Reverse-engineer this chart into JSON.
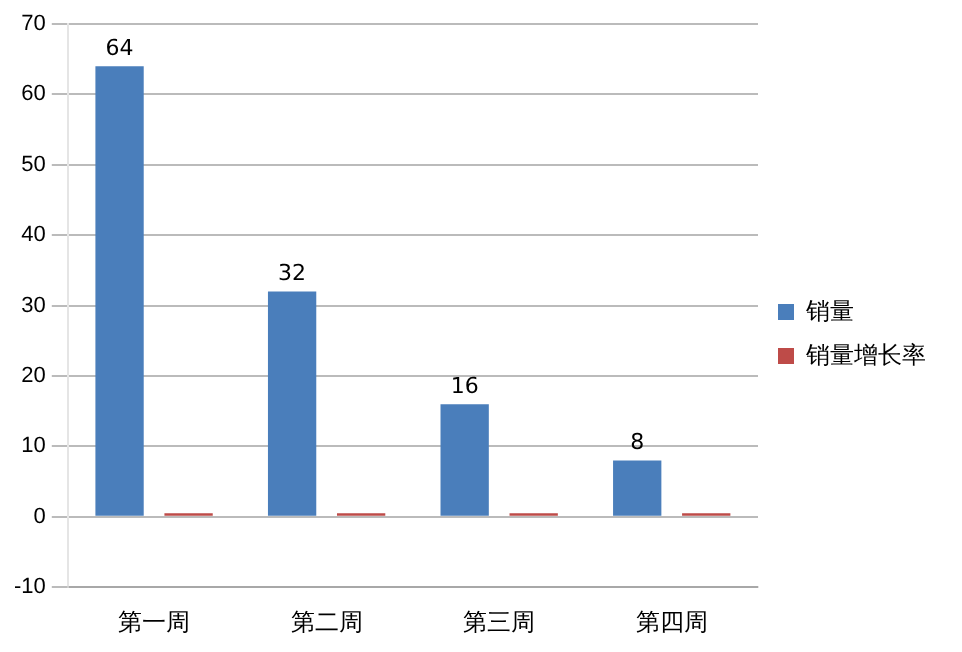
{
  "chart_data": {
    "type": "bar",
    "categories": [
      "第一周",
      "第二周",
      "第三周",
      "第四周"
    ],
    "series": [
      {
        "name": "销量",
        "color": "#4a7ebb",
        "values": [
          64,
          32,
          16,
          8
        ],
        "value_labels": [
          "64",
          "32",
          "16",
          "8"
        ]
      },
      {
        "name": "销量增长率",
        "color": "#be4b48",
        "values": [
          0.5,
          0.5,
          0.5,
          0.5
        ]
      }
    ],
    "ylim": [
      -10,
      70
    ],
    "yticks": [
      -10,
      0,
      10,
      20,
      30,
      40,
      50,
      60,
      70
    ],
    "grid": "y",
    "legend": "right"
  }
}
